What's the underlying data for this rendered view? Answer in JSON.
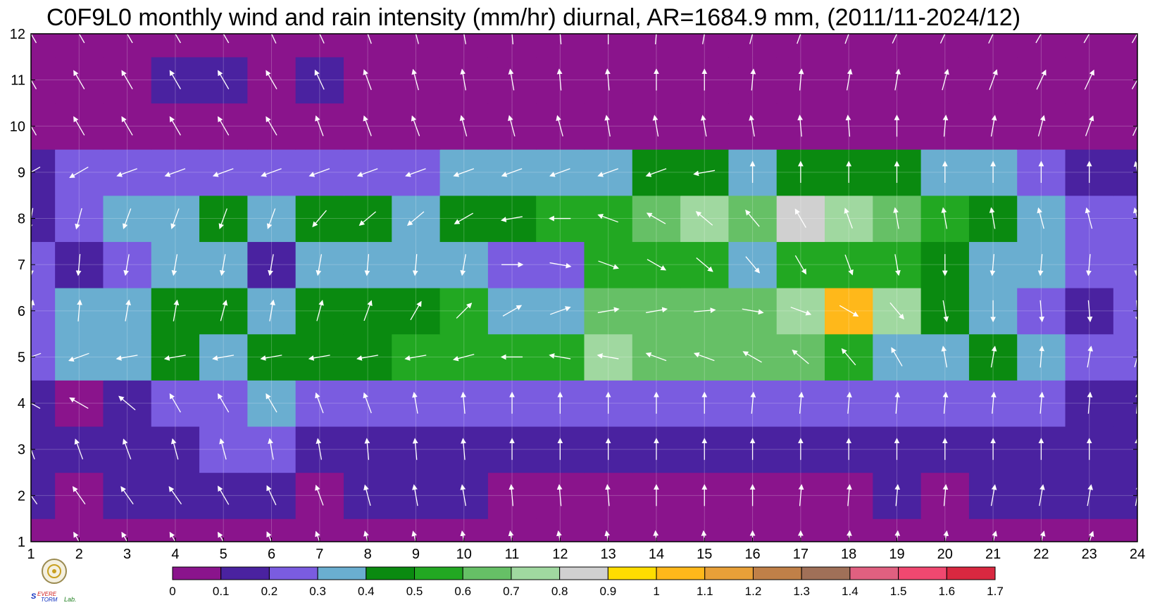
{
  "title": "C0F9L0 monthly wind and rain intensity (mm/hr) diurnal, AR=1684.9 mm, (2011/11-2024/12)",
  "chart_data": {
    "type": "heatmap",
    "title": "C0F9L0 monthly wind and rain intensity (mm/hr) diurnal, AR=1684.9 mm, (2011/11-2024/12)",
    "xlabel": "",
    "ylabel": "",
    "xlim": [
      1,
      24
    ],
    "ylim": [
      1,
      12
    ],
    "xticks": [
      "1",
      "2",
      "3",
      "4",
      "5",
      "6",
      "7",
      "8",
      "9",
      "10",
      "11",
      "12",
      "13",
      "14",
      "15",
      "16",
      "17",
      "18",
      "19",
      "20",
      "21",
      "22",
      "23",
      "24"
    ],
    "yticks": [
      "1",
      "2",
      "3",
      "4",
      "5",
      "6",
      "7",
      "8",
      "9",
      "10",
      "11",
      "12"
    ],
    "grid": true,
    "colorbar": {
      "placement": "bottom",
      "levels": [
        0,
        0.1,
        0.2,
        0.3,
        0.4,
        0.5,
        0.6,
        0.7,
        0.8,
        0.9,
        1,
        1.1,
        1.2,
        1.3,
        1.4,
        1.5,
        1.6,
        1.7
      ],
      "tick_labels": [
        "0",
        "0.1",
        "0.2",
        "0.3",
        "0.4",
        "0.5",
        "0.6",
        "0.7",
        "0.8",
        "0.9",
        "1",
        "1.1",
        "1.2",
        "1.3",
        "1.4",
        "1.5",
        "1.6",
        "1.7"
      ],
      "colors": [
        "#8a148c",
        "#4a22a0",
        "#7a5ce0",
        "#6aaed0",
        "#0a8a10",
        "#22a822",
        "#66c066",
        "#a0d8a0",
        "#d0d0d0",
        "#ffdd00",
        "#ffb81a",
        "#e8a038",
        "#c08048",
        "#a07058",
        "#e06080",
        "#f04870",
        "#d82840"
      ]
    },
    "values": [
      [
        0.05,
        0.05,
        0.05,
        0.05,
        0.05,
        0.05,
        0.05,
        0.05,
        0.05,
        0.05,
        0.05,
        0.05,
        0.05,
        0.05,
        0.05,
        0.05,
        0.05,
        0.05,
        0.05,
        0.05,
        0.05,
        0.05,
        0.05,
        0.05
      ],
      [
        0.1,
        0.05,
        0.1,
        0.15,
        0.1,
        0.1,
        0.05,
        0.1,
        0.1,
        0.1,
        0.05,
        0.05,
        0.05,
        0.05,
        0.05,
        0.05,
        0.05,
        0.05,
        0.1,
        0.05,
        0.1,
        0.1,
        0.1,
        0.15
      ],
      [
        0.15,
        0.15,
        0.15,
        0.15,
        0.2,
        0.2,
        0.15,
        0.15,
        0.15,
        0.1,
        0.15,
        0.15,
        0.15,
        0.15,
        0.1,
        0.15,
        0.15,
        0.15,
        0.15,
        0.15,
        0.15,
        0.15,
        0.15,
        0.15
      ],
      [
        0.15,
        0.05,
        0.15,
        0.2,
        0.25,
        0.3,
        0.2,
        0.2,
        0.25,
        0.25,
        0.2,
        0.2,
        0.2,
        0.2,
        0.25,
        0.2,
        0.2,
        0.25,
        0.2,
        0.2,
        0.2,
        0.2,
        0.15,
        0.15
      ],
      [
        0.25,
        0.35,
        0.35,
        0.4,
        0.35,
        0.42,
        0.45,
        0.45,
        0.52,
        0.55,
        0.58,
        0.58,
        0.7,
        0.62,
        0.62,
        0.6,
        0.6,
        0.55,
        0.35,
        0.35,
        0.42,
        0.35,
        0.25,
        0.2
      ],
      [
        0.25,
        0.3,
        0.35,
        0.45,
        0.45,
        0.35,
        0.4,
        0.42,
        0.45,
        0.5,
        0.35,
        0.35,
        0.6,
        0.65,
        0.6,
        0.65,
        0.75,
        1.0,
        0.7,
        0.45,
        0.35,
        0.2,
        0.15,
        0.2
      ],
      [
        0.2,
        0.15,
        0.25,
        0.3,
        0.3,
        0.15,
        0.3,
        0.3,
        0.35,
        0.3,
        0.25,
        0.25,
        0.5,
        0.5,
        0.55,
        0.35,
        0.55,
        0.55,
        0.55,
        0.4,
        0.35,
        0.35,
        0.25,
        0.25
      ],
      [
        0.15,
        0.25,
        0.3,
        0.35,
        0.45,
        0.3,
        0.45,
        0.45,
        0.35,
        0.45,
        0.45,
        0.5,
        0.5,
        0.65,
        0.75,
        0.6,
        0.8,
        0.75,
        0.6,
        0.5,
        0.45,
        0.3,
        0.25,
        0.25
      ],
      [
        0.1,
        0.2,
        0.2,
        0.25,
        0.25,
        0.2,
        0.2,
        0.25,
        0.25,
        0.3,
        0.3,
        0.35,
        0.35,
        0.4,
        0.4,
        0.35,
        0.4,
        0.4,
        0.4,
        0.35,
        0.3,
        0.25,
        0.15,
        0.15
      ],
      [
        0.05,
        0.05,
        0.05,
        0.05,
        0.05,
        0.05,
        0.05,
        0.05,
        0.05,
        0.05,
        0.05,
        0.05,
        0.05,
        0.05,
        0.05,
        0.05,
        0.05,
        0.05,
        0.05,
        0.05,
        0.05,
        0.05,
        0.05,
        0.05
      ],
      [
        0.05,
        0.05,
        0.05,
        0.12,
        0.1,
        0.05,
        0.1,
        0.05,
        0.05,
        0.05,
        0.05,
        0.05,
        0.05,
        0.05,
        0.05,
        0.05,
        0.05,
        0.05,
        0.05,
        0.05,
        0.05,
        0.05,
        0.05,
        0.05
      ],
      [
        0.05,
        0.05,
        0.05,
        0.05,
        0.05,
        0.05,
        0.05,
        0.05,
        0.05,
        0.05,
        0.05,
        0.05,
        0.05,
        0.05,
        0.05,
        0.05,
        0.05,
        0.05,
        0.05,
        0.05,
        0.05,
        0.05,
        0.05,
        0.05
      ]
    ],
    "wind_direction_deg": [
      [
        330,
        330,
        330,
        330,
        330,
        335,
        340,
        345,
        345,
        350,
        350,
        350,
        350,
        355,
        355,
        0,
        0,
        5,
        5,
        10,
        15,
        15,
        20,
        25
      ],
      [
        325,
        325,
        325,
        325,
        330,
        335,
        340,
        345,
        350,
        350,
        355,
        355,
        355,
        0,
        0,
        0,
        5,
        5,
        5,
        5,
        10,
        10,
        10,
        10
      ],
      [
        340,
        340,
        340,
        345,
        345,
        350,
        350,
        355,
        355,
        355,
        0,
        0,
        0,
        0,
        0,
        0,
        0,
        0,
        0,
        0,
        0,
        0,
        0,
        0
      ],
      [
        300,
        300,
        310,
        330,
        330,
        330,
        340,
        340,
        350,
        355,
        0,
        0,
        0,
        0,
        0,
        5,
        5,
        5,
        5,
        5,
        5,
        5,
        5,
        5
      ],
      [
        250,
        250,
        260,
        260,
        260,
        260,
        260,
        260,
        260,
        255,
        270,
        280,
        280,
        290,
        290,
        300,
        310,
        320,
        330,
        350,
        10,
        5,
        10,
        15
      ],
      [
        10,
        5,
        10,
        10,
        15,
        10,
        15,
        20,
        30,
        45,
        60,
        70,
        80,
        80,
        85,
        100,
        110,
        120,
        140,
        170,
        180,
        175,
        175,
        175
      ],
      [
        180,
        185,
        190,
        190,
        190,
        190,
        190,
        185,
        185,
        190,
        90,
        100,
        110,
        120,
        130,
        140,
        150,
        160,
        170,
        180,
        185,
        185,
        185,
        185
      ],
      [
        190,
        195,
        200,
        200,
        200,
        200,
        220,
        230,
        230,
        240,
        260,
        270,
        290,
        300,
        310,
        320,
        330,
        340,
        350,
        350,
        350,
        345,
        345,
        345
      ],
      [
        240,
        240,
        250,
        250,
        250,
        250,
        250,
        250,
        250,
        250,
        250,
        250,
        250,
        250,
        260,
        0,
        0,
        0,
        0,
        0,
        0,
        0,
        0,
        350
      ],
      [
        330,
        330,
        330,
        330,
        330,
        330,
        340,
        340,
        340,
        345,
        345,
        345,
        350,
        350,
        350,
        350,
        355,
        355,
        0,
        5,
        10,
        15,
        20,
        25
      ],
      [
        330,
        330,
        330,
        330,
        330,
        330,
        335,
        340,
        345,
        350,
        350,
        355,
        355,
        0,
        0,
        5,
        5,
        10,
        10,
        15,
        20,
        25,
        25,
        30
      ],
      [
        330,
        330,
        330,
        330,
        330,
        335,
        335,
        340,
        345,
        350,
        355,
        355,
        0,
        5,
        10,
        15,
        20,
        20,
        25,
        25,
        25,
        30,
        30,
        30
      ]
    ]
  },
  "logo": {
    "text_lines": [
      "SEVERE",
      "STORM",
      "Lab."
    ]
  }
}
